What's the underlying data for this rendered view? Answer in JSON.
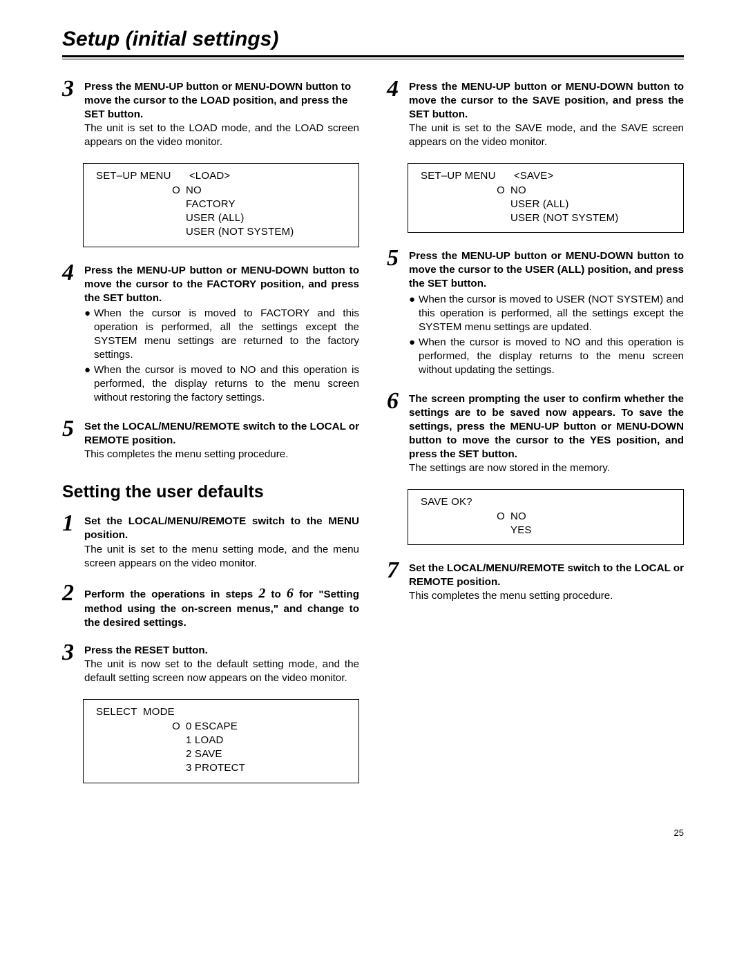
{
  "title": "Setup (initial settings)",
  "pageNumber": "25",
  "subheading": "Setting the user defaults",
  "left": {
    "s3": {
      "num": "3",
      "bold": "Press the MENU-UP button or MENU-DOWN button to move the cursor to the LOAD position, and press the SET button.",
      "plain": "The unit is set to the LOAD mode, and the LOAD screen appears on the video monitor."
    },
    "loadBox": {
      "header": "SET–UP MENU      <LOAD>",
      "r1m": "O",
      "r1v": "NO",
      "r2m": "",
      "r2v": "FACTORY",
      "r3m": "",
      "r3v": "USER (ALL)",
      "r4m": "",
      "r4v": "USER (NOT SYSTEM)"
    },
    "s4": {
      "num": "4",
      "bold": "Press the MENU-UP button or MENU-DOWN button to move the cursor to the FACTORY position, and press the SET button.",
      "b1": "When the cursor is moved to FACTORY and this operation is performed, all the settings except the SYSTEM menu settings are returned to the factory settings.",
      "b2": "When the cursor is moved to NO and this operation is performed, the display returns to the menu screen without restoring the factory settings."
    },
    "s5": {
      "num": "5",
      "bold": "Set the LOCAL/MENU/REMOTE switch to the LOCAL or REMOTE position.",
      "plain": "This completes the menu setting procedure."
    },
    "d1": {
      "num": "1",
      "bold": "Set the LOCAL/MENU/REMOTE switch to the MENU position.",
      "plain": "The unit is set to the menu setting mode, and the menu screen appears on the video monitor."
    },
    "d2": {
      "num": "2",
      "boldA": "Perform the operations in steps ",
      "n1": "2",
      "boldB": " to ",
      "n2": "6",
      "boldC": " for \"Setting method using the on-screen menus,\" and change to the desired settings."
    },
    "d3": {
      "num": "3",
      "bold": "Press the RESET button.",
      "plain": "The unit is now set to the default setting mode, and the default setting screen now appears on the video monitor."
    },
    "selectBox": {
      "header": "SELECT  MODE",
      "r1m": "O",
      "r1v": "0  ESCAPE",
      "r2m": "",
      "r2v": "1  LOAD",
      "r3m": "",
      "r3v": "2  SAVE",
      "r4m": "",
      "r4v": "3  PROTECT"
    }
  },
  "right": {
    "s4": {
      "num": "4",
      "bold": "Press the MENU-UP button or MENU-DOWN button to move the cursor to the SAVE position, and press the SET button.",
      "plain": "The unit is set to the SAVE mode, and the SAVE screen appears on the video monitor."
    },
    "saveBox": {
      "header": "SET–UP MENU      <SAVE>",
      "r1m": "O",
      "r1v": "NO",
      "r2m": "",
      "r2v": "USER (ALL)",
      "r3m": "",
      "r3v": "USER (NOT SYSTEM)"
    },
    "s5": {
      "num": "5",
      "bold": "Press the MENU-UP button or MENU-DOWN button to move the cursor to the USER (ALL) position, and press the SET button.",
      "b1": "When the cursor is moved to USER (NOT SYSTEM) and this operation is performed, all the settings except the SYSTEM menu settings are updated.",
      "b2": "When the cursor is moved to NO and this operation is performed, the display returns to the menu screen without updating the settings."
    },
    "s6": {
      "num": "6",
      "bold": "The screen prompting the user to confirm whether the settings are to be saved now appears.  To save the settings, press the MENU-UP button or MENU-DOWN button to move the cursor to the YES position, and press the SET button.",
      "plain": "The settings are now stored in the memory."
    },
    "okBox": {
      "header": "SAVE OK?",
      "r1m": "O",
      "r1v": "NO",
      "r2m": "",
      "r2v": "YES"
    },
    "s7": {
      "num": "7",
      "bold": "Set the LOCAL/MENU/REMOTE switch to the LOCAL or REMOTE position.",
      "plain": "This completes the menu setting procedure."
    }
  }
}
